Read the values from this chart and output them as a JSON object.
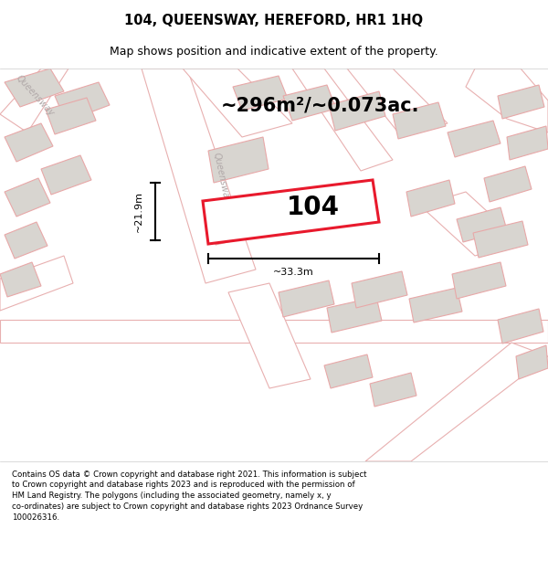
{
  "title": "104, QUEENSWAY, HEREFORD, HR1 1HQ",
  "subtitle": "Map shows position and indicative extent of the property.",
  "area_text": "~296m²/~0.073ac.",
  "label": "104",
  "dim_width": "~33.3m",
  "dim_height": "~21.9m",
  "street_label": "Queensway",
  "footer": "Contains OS data © Crown copyright and database right 2021. This information is subject to Crown copyright and database rights 2023 and is reproduced with the permission of HM Land Registry. The polygons (including the associated geometry, namely x, y co-ordinates) are subject to Crown copyright and database rights 2023 Ordnance Survey 100026316.",
  "map_bg": "#f5f3f0",
  "road_fill": "#ffffff",
  "road_edge": "#e8b0b0",
  "building_fill_gray": "#d8d5d0",
  "building_fill_white": "#f0eee8",
  "building_edge": "#e8a8a8",
  "plot_fill": "#ffffff",
  "plot_edge": "#e8192c",
  "title_color": "#000000",
  "footer_color": "#000000",
  "street_color": "#b0a8a8",
  "dim_color": "#000000",
  "title_fontsize": 10.5,
  "subtitle_fontsize": 9,
  "area_fontsize": 15,
  "label_fontsize": 20,
  "dim_fontsize": 8,
  "footer_fontsize": 6.2
}
